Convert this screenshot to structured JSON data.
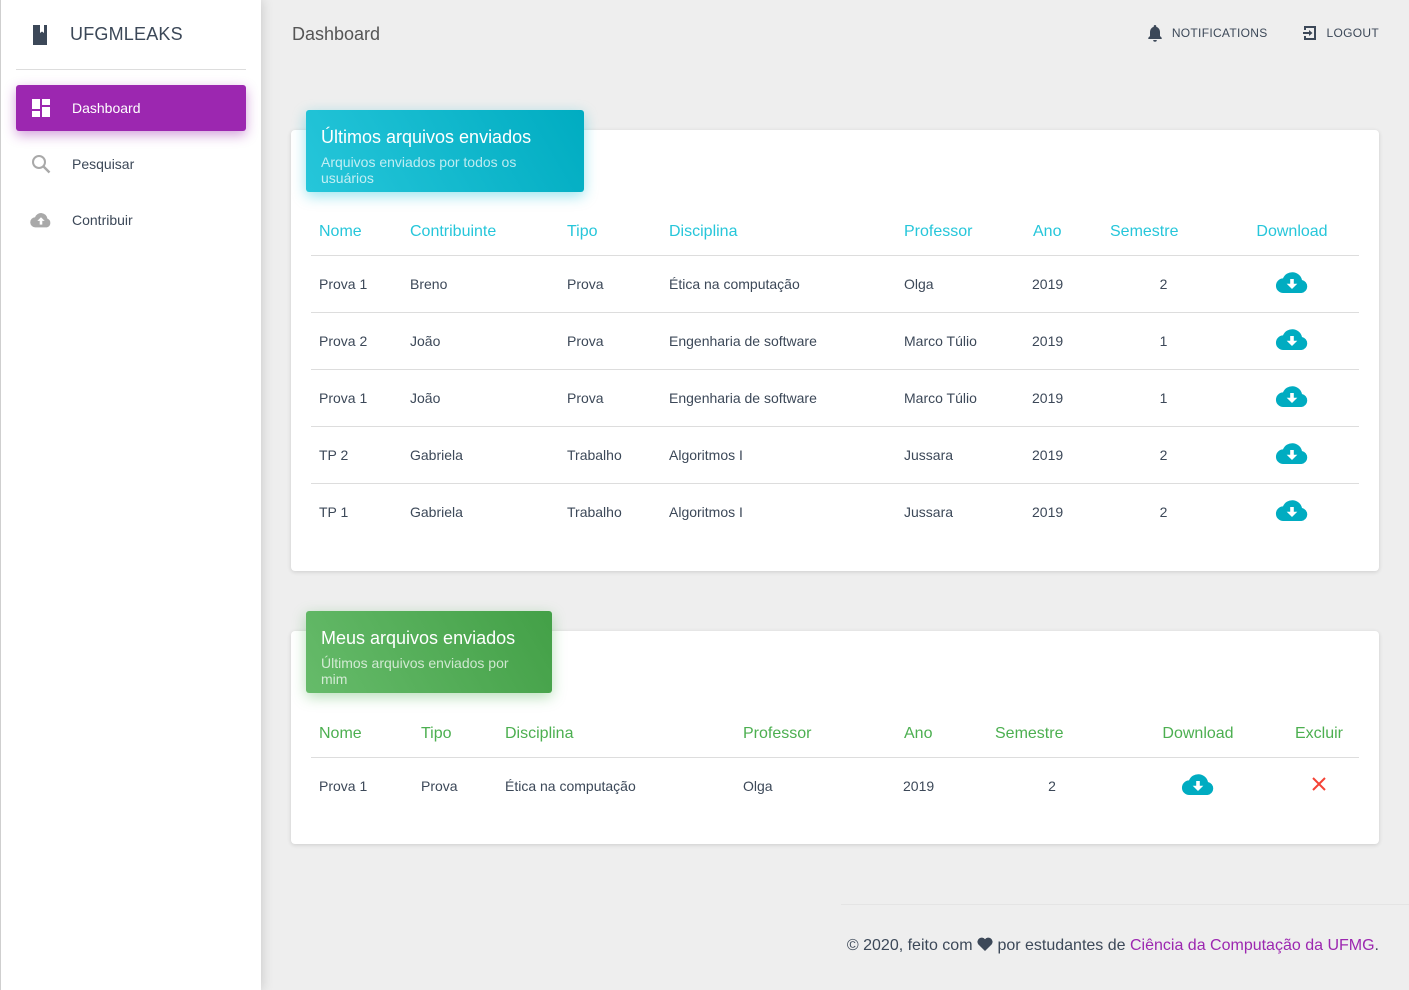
{
  "brand": {
    "title": "UFGMLEAKS"
  },
  "sidebar": {
    "items": [
      {
        "label": "Dashboard",
        "icon": "dashboard-icon",
        "active": true
      },
      {
        "label": "Pesquisar",
        "icon": "search-icon",
        "active": false
      },
      {
        "label": "Contribuir",
        "icon": "cloud-upload-icon",
        "active": false
      }
    ]
  },
  "topbar": {
    "title": "Dashboard",
    "notifications_label": "NOTIFICATIONS",
    "logout_label": "LOGOUT"
  },
  "recent": {
    "title": "Últimos arquivos enviados",
    "subtitle": "Arquivos enviados por todos os usuários",
    "columns": [
      "Nome",
      "Contribuinte",
      "Tipo",
      "Disciplina",
      "Professor",
      "Ano",
      "Semestre",
      "Download"
    ],
    "rows": [
      [
        "Prova 1",
        "Breno",
        "Prova",
        "Ética na computação",
        "Olga",
        "2019",
        "2"
      ],
      [
        "Prova 2",
        "João",
        "Prova",
        "Engenharia de software",
        "Marco Túlio",
        "2019",
        "1"
      ],
      [
        "Prova 1",
        "João",
        "Prova",
        "Engenharia de software",
        "Marco Túlio",
        "2019",
        "1"
      ],
      [
        "TP 2",
        "Gabriela",
        "Trabalho",
        "Algoritmos I",
        "Jussara",
        "2019",
        "2"
      ],
      [
        "TP 1",
        "Gabriela",
        "Trabalho",
        "Algoritmos I",
        "Jussara",
        "2019",
        "2"
      ]
    ]
  },
  "mine": {
    "title": "Meus arquivos enviados",
    "subtitle": "Últimos arquivos enviados por mim",
    "columns": [
      "Nome",
      "Tipo",
      "Disciplina",
      "Professor",
      "Ano",
      "Semestre",
      "Download",
      "Excluir"
    ],
    "rows": [
      [
        "Prova 1",
        "Prova",
        "Ética na computação",
        "Olga",
        "2019",
        "2"
      ]
    ]
  },
  "footer": {
    "prefix": "© 2020, feito com",
    "middle": "por estudantes de",
    "link": "Ciência da Computação da UFMG",
    "suffix": "."
  },
  "colors": {
    "primary": "#9c27b0",
    "info": "#26c6da",
    "success": "#4caf50",
    "danger": "#f44336",
    "download": "#00acc1"
  }
}
